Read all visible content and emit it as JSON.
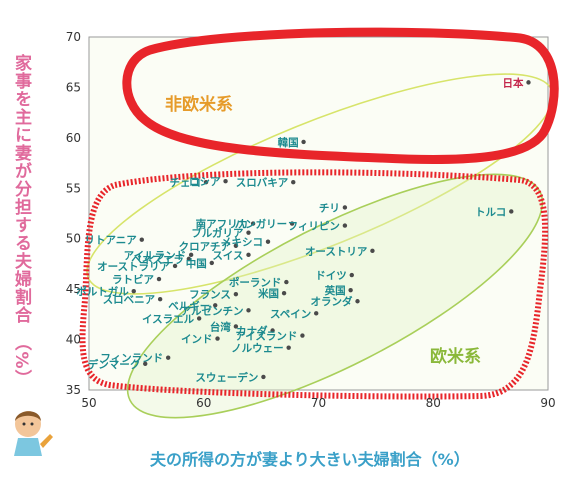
{
  "chart_data": {
    "type": "scatter",
    "title": "",
    "xlabel": "夫の所得の方が妻より大きい夫婦割合（%）",
    "ylabel": "家事を主に妻が分担する夫婦割合　（%）",
    "xlim": [
      50,
      90
    ],
    "ylim": [
      35,
      70
    ],
    "xticks": [
      50,
      60,
      70,
      80,
      90
    ],
    "yticks": [
      35,
      40,
      45,
      50,
      55,
      60,
      65,
      70
    ],
    "grid": false,
    "groups": [
      {
        "name": "非欧米系",
        "color": "#e69b2a",
        "circle_color": "#e8252a"
      },
      {
        "name": "欧米系",
        "color": "#8ab83a",
        "circle_color": "#e8252a"
      }
    ],
    "points": [
      {
        "label": "日本",
        "x": 88.3,
        "y": 65.5,
        "group": "非欧米系"
      },
      {
        "label": "韓国",
        "x": 68.7,
        "y": 59.6,
        "group": "非欧米系"
      },
      {
        "label": "チェコ",
        "x": 60.2,
        "y": 55.6,
        "group": "欧米系"
      },
      {
        "label": "ロシア",
        "x": 61.9,
        "y": 55.7,
        "group": "欧米系"
      },
      {
        "label": "スロバキア",
        "x": 67.8,
        "y": 55.6,
        "group": "欧米系"
      },
      {
        "label": "トルコ",
        "x": 86.8,
        "y": 52.7,
        "group": "欧米系"
      },
      {
        "label": "チリ",
        "x": 72.3,
        "y": 53.1,
        "group": "欧米系"
      },
      {
        "label": "南アフリカ",
        "x": 64.3,
        "y": 51.5,
        "group": "欧米系"
      },
      {
        "label": "ハンガリー",
        "x": 67.7,
        "y": 51.5,
        "group": "欧米系"
      },
      {
        "label": "ブルガリア",
        "x": 63.9,
        "y": 50.6,
        "group": "欧米系"
      },
      {
        "label": "フィリピン",
        "x": 72.3,
        "y": 51.3,
        "group": "欧米系"
      },
      {
        "label": "リトアニア",
        "x": 54.6,
        "y": 49.9,
        "group": "欧米系"
      },
      {
        "label": "クロアチア",
        "x": 62.8,
        "y": 49.3,
        "group": "欧米系"
      },
      {
        "label": "メキシコ",
        "x": 65.6,
        "y": 49.7,
        "group": "欧米系"
      },
      {
        "label": "アイルランド",
        "x": 58.9,
        "y": 48.4,
        "group": "欧米系"
      },
      {
        "label": "ベネズエラ",
        "x": 58.7,
        "y": 48.0,
        "group": "欧米系"
      },
      {
        "label": "オーストリア",
        "x": 74.7,
        "y": 48.8,
        "group": "欧米系"
      },
      {
        "label": "スイス",
        "x": 63.9,
        "y": 48.4,
        "group": "欧米系"
      },
      {
        "label": "中国",
        "x": 60.7,
        "y": 47.6,
        "group": "欧米系"
      },
      {
        "label": "オーストラリア",
        "x": 57.5,
        "y": 47.3,
        "group": "欧米系"
      },
      {
        "label": "ドイツ",
        "x": 72.9,
        "y": 46.4,
        "group": "欧米系"
      },
      {
        "label": "ラトビア",
        "x": 56.1,
        "y": 46.0,
        "group": "欧米系"
      },
      {
        "label": "英国",
        "x": 72.8,
        "y": 44.9,
        "group": "欧米系"
      },
      {
        "label": "ポーランド",
        "x": 67.2,
        "y": 45.7,
        "group": "欧米系"
      },
      {
        "label": "ポルトガル",
        "x": 53.9,
        "y": 44.8,
        "group": "欧米系"
      },
      {
        "label": "フランス",
        "x": 62.8,
        "y": 44.5,
        "group": "欧米系"
      },
      {
        "label": "スロベニア",
        "x": 56.2,
        "y": 44.0,
        "group": "欧米系"
      },
      {
        "label": "米国",
        "x": 67.0,
        "y": 44.6,
        "group": "欧米系"
      },
      {
        "label": "オランダ",
        "x": 73.4,
        "y": 43.8,
        "group": "欧米系"
      },
      {
        "label": "ベルギー",
        "x": 61.0,
        "y": 43.4,
        "group": "欧米系"
      },
      {
        "label": "アルゼンチン",
        "x": 63.9,
        "y": 42.9,
        "group": "欧米系"
      },
      {
        "label": "スペイン",
        "x": 69.8,
        "y": 42.6,
        "group": "欧米系"
      },
      {
        "label": "イスラエル",
        "x": 59.6,
        "y": 42.1,
        "group": "欧米系"
      },
      {
        "label": "台湾",
        "x": 62.8,
        "y": 41.3,
        "group": "欧米系"
      },
      {
        "label": "カナダ",
        "x": 66.0,
        "y": 40.9,
        "group": "欧米系"
      },
      {
        "label": "アイスランド",
        "x": 68.6,
        "y": 40.4,
        "group": "欧米系"
      },
      {
        "label": "インド",
        "x": 61.2,
        "y": 40.1,
        "group": "欧米系"
      },
      {
        "label": "ノルウェー",
        "x": 67.4,
        "y": 39.2,
        "group": "欧米系"
      },
      {
        "label": "フィンランド",
        "x": 56.9,
        "y": 38.2,
        "group": "欧米系"
      },
      {
        "label": "デンマーク",
        "x": 54.9,
        "y": 37.6,
        "group": "欧米系"
      },
      {
        "label": "スウェーデン",
        "x": 65.2,
        "y": 36.3,
        "group": "欧米系"
      }
    ]
  }
}
